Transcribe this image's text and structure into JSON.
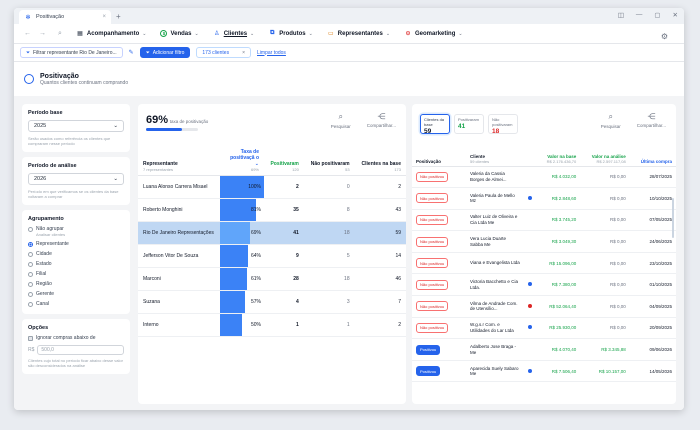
{
  "browser": {
    "tab_title": "Positivação",
    "close_glyph": "×",
    "new_tab_glyph": "+",
    "window_controls": [
      "◫",
      "—",
      "▢",
      "✕"
    ]
  },
  "nav": {
    "items": [
      {
        "label": "Acompanhamento",
        "icon": "grid-icon"
      },
      {
        "label": "Vendas",
        "icon": "dollar-icon"
      },
      {
        "label": "Clientes",
        "icon": "user-icon",
        "active": true
      },
      {
        "label": "Produtos",
        "icon": "box-icon"
      },
      {
        "label": "Representantes",
        "icon": "briefcase-icon"
      },
      {
        "label": "Geomarketing",
        "icon": "map-pin-icon"
      }
    ],
    "chevron": "⌄",
    "back_glyph": "←",
    "forward_glyph": "→",
    "search_glyph": "⌕",
    "settings_glyph": "⚙"
  },
  "filterbar": {
    "filter_chip": "Filtrar representante Rio De Janeiro...",
    "add_filters": "Adicionar filtro",
    "count_chip": "173 clientes",
    "clear_glyph": "×",
    "clear_link": "Limpar todos"
  },
  "header": {
    "title": "Positivação",
    "subtitle": "Quantos clientes continuam comprando"
  },
  "left": {
    "base_label": "Período base",
    "base_value": "2025",
    "base_hint": "Serão usados como referência os clientes que compraram nesse período",
    "analysis_label": "Período de análise",
    "analysis_value": "2026",
    "analysis_hint": "Período em que verificamos se os clientes da base voltaram a comprar",
    "group_label": "Agrupamento",
    "groups": [
      {
        "label": "Não agrupar",
        "sub": "Analisar clientes",
        "on": false
      },
      {
        "label": "Representante",
        "sub": "",
        "on": true
      },
      {
        "label": "Cidade",
        "sub": "",
        "on": false
      },
      {
        "label": "Estado",
        "sub": "",
        "on": false
      },
      {
        "label": "Filial",
        "sub": "",
        "on": false
      },
      {
        "label": "Região",
        "sub": "",
        "on": false
      },
      {
        "label": "Gerente",
        "sub": "",
        "on": false
      },
      {
        "label": "Canal",
        "sub": "",
        "on": false
      }
    ],
    "options_label": "Opções",
    "ignore_label": "Ignorar compras abaixo de",
    "currency": "R$",
    "amount_placeholder": "500,0",
    "amount_hint": "Clientes cujo total no período ficar abaixo desse valor são desconsiderados na análise",
    "select_chevron": "⌄"
  },
  "summary": {
    "rate": "69%",
    "rate_label": "taxa de positivação",
    "rate_fraction": 0.69,
    "search": "Pesquisar",
    "share": "Compartilhar..."
  },
  "reps_table": {
    "headers": {
      "rep": "Representante",
      "rep_sub": "7 representantes",
      "rate": "Taxa de positivaçã o",
      "rate_sub": "69%",
      "pos": "Positivaram",
      "pos_sub": "120",
      "neg": "Não positivaram",
      "neg_sub": "53",
      "base": "Clientes na base",
      "base_sub": "173"
    },
    "rows": [
      {
        "name": "Luana Alonso Carrera Misael",
        "rate": "100%",
        "rate_val": 1.0,
        "pos": "2",
        "neg": "0",
        "base": "2"
      },
      {
        "name": "Roberto Monghini",
        "rate": "81%",
        "rate_val": 0.81,
        "pos": "35",
        "neg": "8",
        "base": "43"
      },
      {
        "name": "Rio De Janeiro Representações",
        "rate": "69%",
        "rate_val": 0.69,
        "pos": "41",
        "neg": "18",
        "base": "59",
        "selected": true
      },
      {
        "name": "Jefferson Vitor De Souza",
        "rate": "64%",
        "rate_val": 0.64,
        "pos": "9",
        "neg": "5",
        "base": "14"
      },
      {
        "name": "Marconi",
        "rate": "61%",
        "rate_val": 0.61,
        "pos": "28",
        "neg": "18",
        "base": "46"
      },
      {
        "name": "Suzana",
        "rate": "57%",
        "rate_val": 0.57,
        "pos": "4",
        "neg": "3",
        "base": "7"
      },
      {
        "name": "Interno",
        "rate": "50%",
        "rate_val": 0.5,
        "pos": "1",
        "neg": "1",
        "base": "2"
      }
    ]
  },
  "segments": [
    {
      "label": "Clientes da base",
      "value": "59",
      "on": true,
      "tone": ""
    },
    {
      "label": "Positivaram",
      "value": "41",
      "on": false,
      "tone": "g"
    },
    {
      "label": "Não positivaram",
      "value": "18",
      "on": false,
      "tone": "r"
    }
  ],
  "clients_table": {
    "headers": {
      "pos": "Positivação",
      "client": "Cliente",
      "client_sub": "59 clientes",
      "base": "Valor na base",
      "base_sub": "R$ 2.176.436,70",
      "analysis": "Valor na análise",
      "analysis_sub": "R$ 2.597.117,08",
      "last": "Última compra"
    },
    "rows": [
      {
        "status": "Não positivou",
        "positive": false,
        "client": "Valeria da Cassia Borges de Almei...",
        "dot": "",
        "base": "R$ 4.032,00",
        "analysis": "R$ 0,00",
        "last": "28/07/2025"
      },
      {
        "status": "Não positivou",
        "positive": false,
        "client": "Valeria Paula de Mello Mz",
        "dot": "#2563eb",
        "base": "R$ 2.848,60",
        "analysis": "R$ 0,00",
        "last": "10/10/2025"
      },
      {
        "status": "Não positivou",
        "positive": false,
        "client": "Valter Luiz de Oliveira e Cia Ltda Me",
        "dot": "",
        "base": "R$ 3.745,20",
        "analysis": "R$ 0,00",
        "last": "07/05/2025"
      },
      {
        "status": "Não positivou",
        "positive": false,
        "client": "Vera Lucia Duarte Sabba Me",
        "dot": "",
        "base": "R$ 3.049,30",
        "analysis": "R$ 0,00",
        "last": "24/06/2025"
      },
      {
        "status": "Não positivou",
        "positive": false,
        "client": "Viana e Evangelista Ltda",
        "dot": "",
        "base": "R$ 15.096,00",
        "analysis": "R$ 0,00",
        "last": "23/10/2025"
      },
      {
        "status": "Não positivou",
        "positive": false,
        "client": "Victoria Bacchetto e Cia Ltda.",
        "dot": "#2563eb",
        "base": "R$ 7.380,00",
        "analysis": "R$ 0,00",
        "last": "01/10/2025"
      },
      {
        "status": "Não positivou",
        "positive": false,
        "client": "Vilma de Andrade Com. de Utensílio...",
        "dot": "#dc2626",
        "base": "R$ 52.064,40",
        "analysis": "R$ 0,00",
        "last": "04/09/2025"
      },
      {
        "status": "Não positivou",
        "positive": false,
        "client": "W.g.s.r Com. e Utilidades do Lar Ltda",
        "dot": "#2563eb",
        "base": "R$ 25.930,00",
        "analysis": "R$ 0,00",
        "last": "20/09/2025"
      },
      {
        "status": "Positivou",
        "positive": true,
        "client": "Adalberto Jose Braga - Me",
        "dot": "",
        "base": "R$ 4.070,40",
        "analysis": "R$ 3.345,88",
        "last": "09/06/2026"
      },
      {
        "status": "Positivou",
        "positive": true,
        "client": "Aparecida Suely Sabaro Me",
        "dot": "#2563eb",
        "base": "R$ 7.506,40",
        "analysis": "R$ 10.157,00",
        "last": "14/05/2026"
      }
    ]
  }
}
